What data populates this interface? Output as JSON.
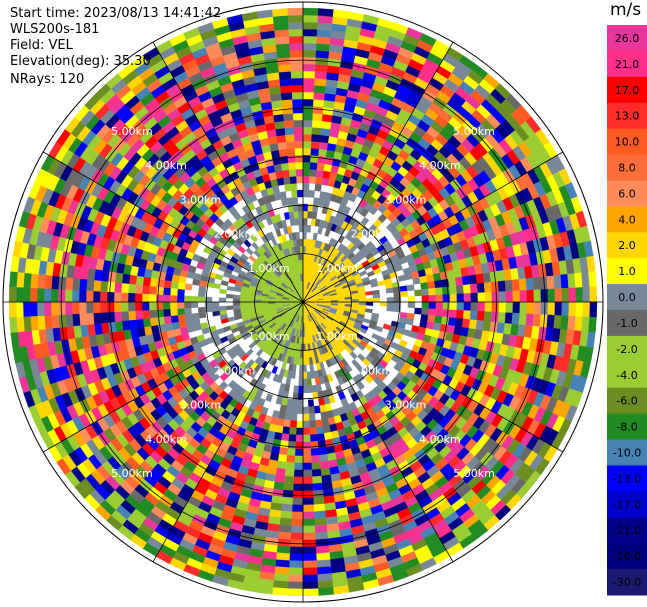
{
  "info": {
    "start_time": "Start time: 2023/08/13 14:41:42",
    "instrument": "WLS200s-181",
    "field": "Field: VEL",
    "elevation": "Elevation(deg): 35.30",
    "nrays": "NRays: 120"
  },
  "chart_data": {
    "type": "heatmap",
    "projection": "polar PPI",
    "field": "VEL",
    "units": "m/s",
    "elevation_deg": 35.3,
    "n_rays": 120,
    "range_rings_km": [
      1.0,
      2.0,
      3.0,
      4.0,
      5.0
    ],
    "ring_label_text": [
      "1.00km",
      "2.00km",
      "3.00km",
      "4.00km",
      "5.00km"
    ],
    "colorbar": {
      "label": "m/s",
      "range": [
        -30.0,
        30.0
      ],
      "ticks": [
        "26.0",
        "21.0",
        "17.0",
        "13.0",
        "10.0",
        "8.0",
        "6.0",
        "4.0",
        "2.0",
        "1.0",
        "0.0",
        "-1.0",
        "-2.0",
        "-4.0",
        "-6.0",
        "-8.0",
        "-10.0",
        "-13.0",
        "-17.0",
        "-21.0",
        "-26.0",
        "-30.0"
      ],
      "bins": [
        {
          "min": 26.0,
          "max": 30.0,
          "color": "#e8369a"
        },
        {
          "min": 21.0,
          "max": 26.0,
          "color": "#ff2f8a"
        },
        {
          "min": 17.0,
          "max": 21.0,
          "color": "#ff0000"
        },
        {
          "min": 13.0,
          "max": 17.0,
          "color": "#ff2a2a"
        },
        {
          "min": 10.0,
          "max": 13.0,
          "color": "#ff5a22"
        },
        {
          "min": 8.0,
          "max": 10.0,
          "color": "#ff6e3a"
        },
        {
          "min": 6.0,
          "max": 8.0,
          "color": "#ff8c5a"
        },
        {
          "min": 4.0,
          "max": 6.0,
          "color": "#ffa500"
        },
        {
          "min": 2.0,
          "max": 4.0,
          "color": "#ffd700"
        },
        {
          "min": 1.0,
          "max": 2.0,
          "color": "#ffff00"
        },
        {
          "min": 0.0,
          "max": 1.0,
          "color": "#778899"
        },
        {
          "min": -1.0,
          "max": 0.0,
          "color": "#696969"
        },
        {
          "min": -2.0,
          "max": -1.0,
          "color": "#9acd32"
        },
        {
          "min": -4.0,
          "max": -2.0,
          "color": "#9acd32"
        },
        {
          "min": -6.0,
          "max": -4.0,
          "color": "#6b8e23"
        },
        {
          "min": -8.0,
          "max": -6.0,
          "color": "#228b22"
        },
        {
          "min": -10.0,
          "max": -8.0,
          "color": "#4682b4"
        },
        {
          "min": -13.0,
          "max": -10.0,
          "color": "#0000ff"
        },
        {
          "min": -17.0,
          "max": -13.0,
          "color": "#0000cd"
        },
        {
          "min": -21.0,
          "max": -17.0,
          "color": "#00008b"
        },
        {
          "min": -26.0,
          "max": -21.0,
          "color": "#000080"
        },
        {
          "min": -30.0,
          "max": -26.0,
          "color": "#191970"
        }
      ]
    },
    "central_pattern": {
      "positive_side": "east",
      "positive_color": "#ffd700",
      "negative_side": "west",
      "negative_color": "#9acd32"
    }
  }
}
